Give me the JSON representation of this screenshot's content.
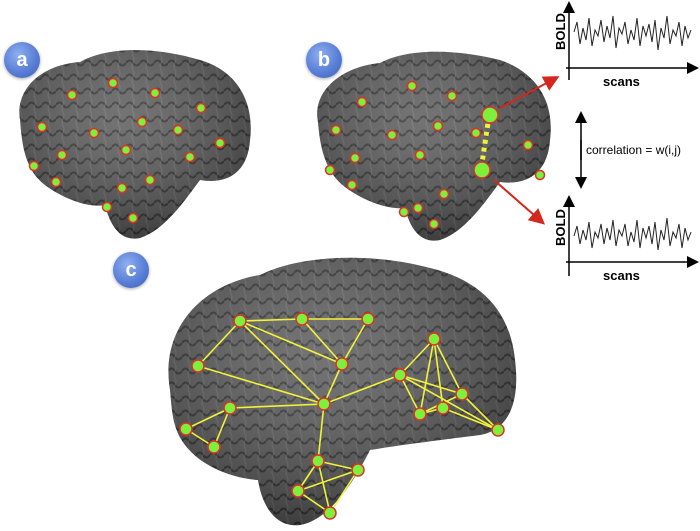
{
  "panels": {
    "a_label": "a",
    "b_label": "b",
    "c_label": "c"
  },
  "timeseries": {
    "top_ylabel": "BOLD",
    "top_xlabel": "scans",
    "bottom_ylabel": "BOLD",
    "bottom_xlabel": "scans"
  },
  "correlation_label": "correlation = w(i,j)",
  "colors": {
    "brain": "#4a4a4a",
    "node_fill": "#7cf03a",
    "node_stroke": "#e0302a",
    "edge": "#f2f23a",
    "arrow_red": "#d4281e",
    "badge": "#5a7fd6"
  }
}
